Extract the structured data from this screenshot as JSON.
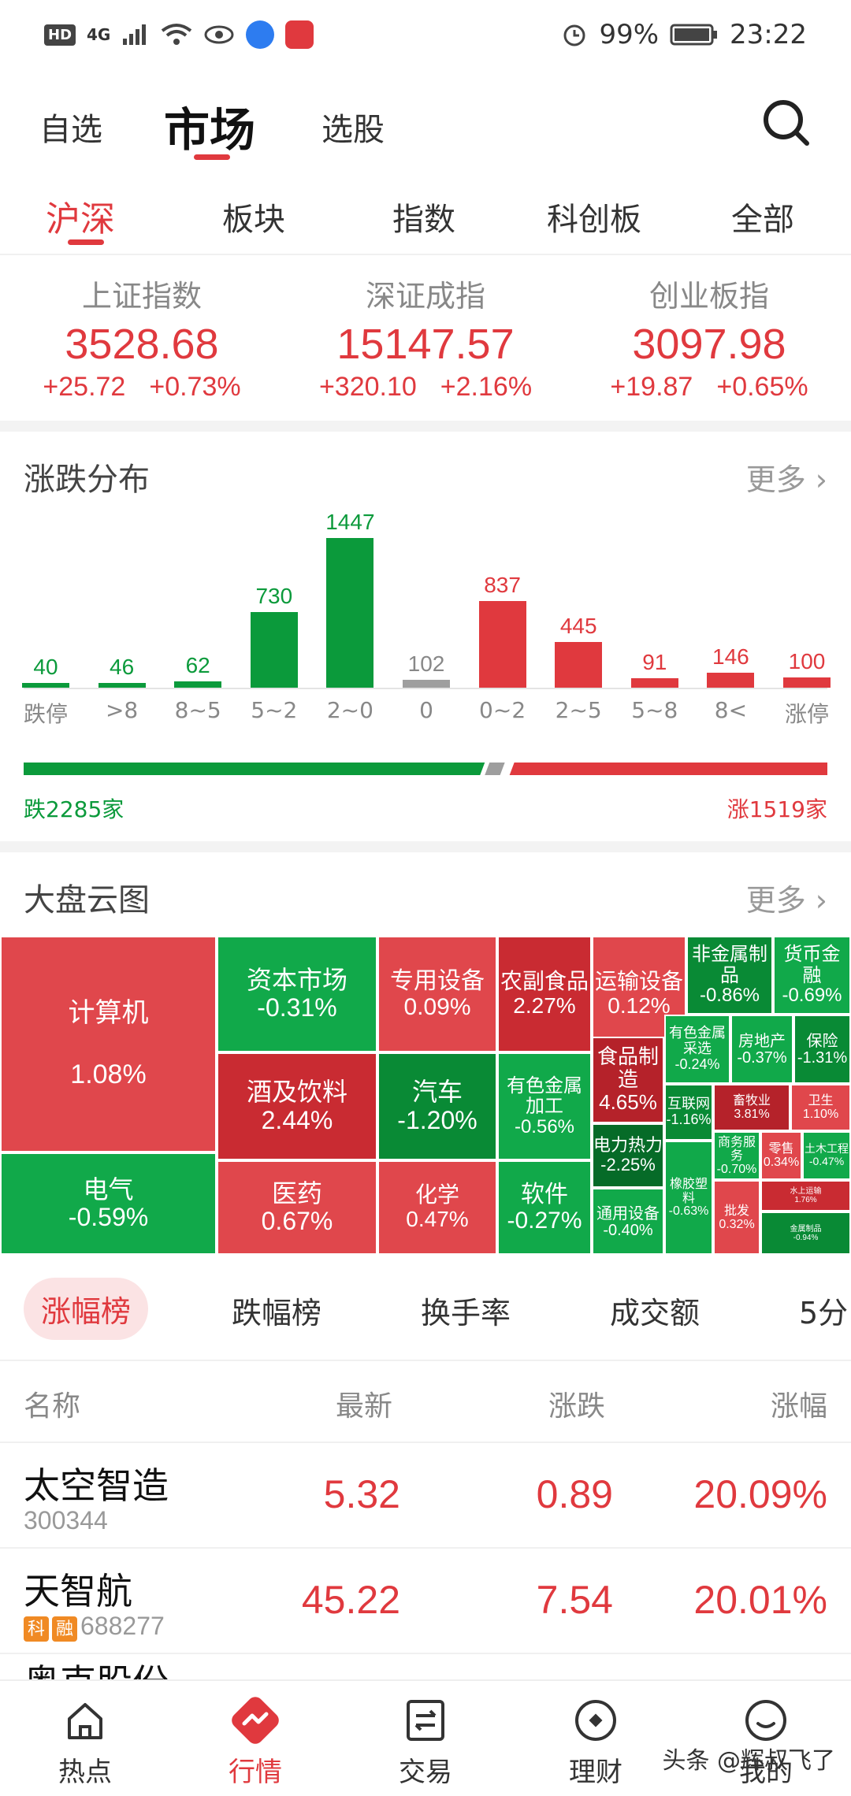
{
  "status_bar": {
    "left": [
      "HD",
      "4G"
    ],
    "battery": "99%",
    "time": "23:22"
  },
  "header": {
    "tabs": [
      "自选",
      "市场",
      "选股"
    ],
    "active_tab": "市场",
    "search_icon": "search-icon"
  },
  "sub_tabs": [
    "沪深",
    "板块",
    "指数",
    "科创板",
    "全部"
  ],
  "indices": [
    {
      "name": "上证指数",
      "value": "3528.68",
      "change": "+25.72",
      "pct": "+0.73%"
    },
    {
      "name": "深证成指",
      "value": "15147.57",
      "change": "+320.10",
      "pct": "+2.16%"
    },
    {
      "name": "创业板指",
      "value": "3097.98",
      "change": "+19.87",
      "pct": "+0.65%"
    }
  ],
  "distribution": {
    "title": "涨跌分布",
    "more": "更多",
    "down_label": "跌2285家",
    "up_label": "涨1519家"
  },
  "chart_data": {
    "type": "bar",
    "categories": [
      "跌停",
      ">8",
      "8~5",
      "5~2",
      "2~0",
      "0",
      "0~2",
      "2~5",
      "5~8",
      "8<",
      "涨停"
    ],
    "values": [
      40,
      46,
      62,
      730,
      1447,
      102,
      837,
      445,
      91,
      146,
      100
    ],
    "colors": [
      "#0b9a3b",
      "#0b9a3b",
      "#0b9a3b",
      "#0b9a3b",
      "#0b9a3b",
      "#9e9e9e",
      "#e0393e",
      "#e0393e",
      "#e0393e",
      "#e0393e",
      "#e0393e"
    ],
    "title": "",
    "xlabel": "",
    "ylabel": "",
    "ylim": [
      0,
      1447
    ]
  },
  "treemap": {
    "title": "大盘云图",
    "more": "更多",
    "cells": [
      {
        "name": "计算机",
        "pct": "1.08%"
      },
      {
        "name": "资本市场",
        "pct": "-0.31%"
      },
      {
        "name": "专用设备",
        "pct": "0.09%"
      },
      {
        "name": "农副食品",
        "pct": "2.27%"
      },
      {
        "name": "运输设备",
        "pct": "0.12%"
      },
      {
        "name": "非金属制品",
        "pct": "-0.86%"
      },
      {
        "name": "货币金融",
        "pct": "-0.69%"
      },
      {
        "name": "酒及饮料",
        "pct": "2.44%"
      },
      {
        "name": "汽车",
        "pct": "-1.20%"
      },
      {
        "name": "有色金属加工",
        "pct": "-0.56%"
      },
      {
        "name": "食品制造",
        "pct": "4.65%"
      },
      {
        "name": "有色金属采选",
        "pct": "-0.24%"
      },
      {
        "name": "房地产",
        "pct": "-0.37%"
      },
      {
        "name": "保险",
        "pct": "-1.31%"
      },
      {
        "name": "互联网",
        "pct": "-1.16%"
      },
      {
        "name": "畜牧业",
        "pct": "3.81%"
      },
      {
        "name": "卫生",
        "pct": "1.10%"
      },
      {
        "name": "电力热力",
        "pct": "-2.25%"
      },
      {
        "name": "商务服务",
        "pct": "-0.70%"
      },
      {
        "name": "零售",
        "pct": "0.34%"
      },
      {
        "name": "土木工程",
        "pct": "-0.47%"
      },
      {
        "name": "电气",
        "pct": "-0.59%"
      },
      {
        "name": "医药",
        "pct": "0.67%"
      },
      {
        "name": "化学",
        "pct": "0.47%"
      },
      {
        "name": "软件",
        "pct": "-0.27%"
      },
      {
        "name": "通用设备",
        "pct": "-0.40%"
      },
      {
        "name": "橡胶塑料",
        "pct": "-0.63%"
      },
      {
        "name": "批发",
        "pct": "0.32%"
      },
      {
        "name": "水上运输",
        "pct": "1.76%"
      },
      {
        "name": "金属制品",
        "pct": "-0.94%"
      }
    ]
  },
  "ranking": {
    "tabs": [
      "涨幅榜",
      "跌幅榜",
      "换手率",
      "成交额",
      "5分"
    ],
    "columns": [
      "名称",
      "最新",
      "涨跌",
      "涨幅"
    ],
    "rows": [
      {
        "name": "太空智造",
        "code": "300344",
        "price": "5.32",
        "change": "0.89",
        "pct": "20.09%",
        "tags": []
      },
      {
        "name": "天智航",
        "code": "688277",
        "price": "45.22",
        "change": "7.54",
        "pct": "20.01%",
        "tags": [
          "科",
          "融"
        ]
      }
    ],
    "partial_row_name": "奥克股份"
  },
  "bottom_nav": [
    {
      "label": "热点",
      "icon": "home-icon"
    },
    {
      "label": "行情",
      "icon": "market-icon"
    },
    {
      "label": "交易",
      "icon": "trade-icon"
    },
    {
      "label": "理财",
      "icon": "wealth-icon"
    },
    {
      "label": "我的",
      "icon": "profile-icon"
    }
  ],
  "watermark": "头条 @辉叔飞了"
}
